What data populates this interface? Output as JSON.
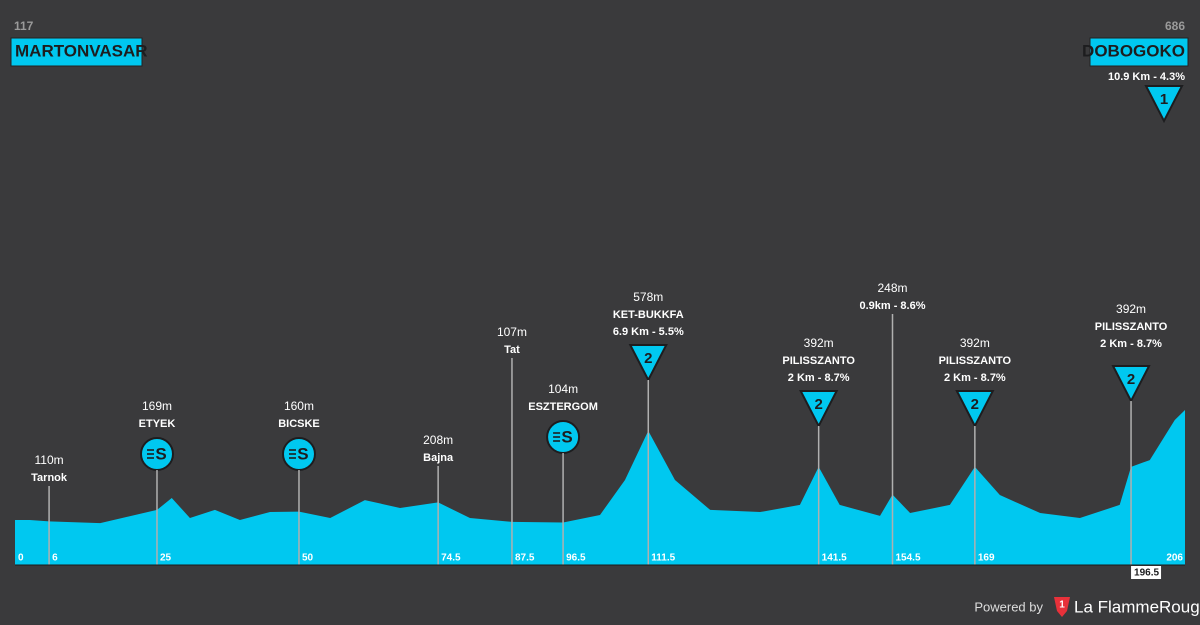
{
  "chart_data": {
    "type": "area",
    "color": "#00c8f0",
    "start": {
      "name": "MARTONVASAR",
      "elevation": 117
    },
    "finish": {
      "name": "DOBOGOKO",
      "elevation": 686,
      "detail": "10.9 Km - 4.3%",
      "category": "1"
    },
    "x": [
      0,
      2.6,
      6,
      15,
      25,
      27.6,
      30.8,
      35.2,
      39.6,
      44.9,
      50,
      55.5,
      61.6,
      67.8,
      74.5,
      80.1,
      87.5,
      96.5,
      103,
      107.4,
      111.5,
      116.2,
      122.4,
      131.2,
      138.2,
      141.5,
      145.2,
      152.3,
      154.5,
      157.6,
      164.6,
      169,
      173.4,
      180.5,
      187.5,
      194.5,
      196.5,
      199.8,
      204.2,
      206
    ],
    "values": [
      117,
      117,
      110,
      101,
      169,
      231,
      127,
      169,
      117,
      158,
      160,
      127,
      220,
      179,
      208,
      127,
      107,
      104,
      143,
      324,
      578,
      324,
      169,
      158,
      195,
      392,
      195,
      138,
      248,
      153,
      195,
      392,
      246,
      153,
      127,
      195,
      392,
      427,
      634,
      686
    ],
    "xticks": [
      0,
      6,
      25,
      50,
      74.5,
      87.5,
      96.5,
      111.5,
      141.5,
      154.5,
      169,
      196.5,
      206
    ],
    "annotations": [
      {
        "x": 6,
        "elevation": 110,
        "elevation_label": "110m",
        "name": "Tarnok"
      },
      {
        "x": 25,
        "elevation": 169,
        "elevation_label": "169m",
        "name": "ETYEK",
        "icon": "S"
      },
      {
        "x": 50,
        "elevation": 160,
        "elevation_label": "160m",
        "name": "BICSKE",
        "icon": "S"
      },
      {
        "x": 74.5,
        "elevation": 208,
        "elevation_label": "208m",
        "name": "Bajna"
      },
      {
        "x": 87.5,
        "elevation": 107,
        "elevation_label": "107m",
        "name": "Tat"
      },
      {
        "x": 96.5,
        "elevation": 104,
        "elevation_label": "104m",
        "name": "ESZTERGOM",
        "icon": "S"
      },
      {
        "x": 111.5,
        "elevation": 578,
        "elevation_label": "578m",
        "name": "KET-BUKKFA",
        "detail": "6.9 Km - 5.5%",
        "category": "2"
      },
      {
        "x": 141.5,
        "elevation": 392,
        "elevation_label": "392m",
        "name": "PILISSZANTO",
        "detail": "2 Km - 8.7%",
        "category": "2"
      },
      {
        "x": 154.5,
        "elevation": 248,
        "elevation_label": "248m",
        "detail": "0.9km - 8.6%"
      },
      {
        "x": 169,
        "elevation": 392,
        "elevation_label": "392m",
        "name": "PILISSZANTO",
        "detail": "2 Km - 8.7%",
        "category": "2"
      },
      {
        "x": 196.5,
        "elevation": 392,
        "elevation_label": "392m",
        "name": "PILISSZANTO",
        "detail": "2 Km - 8.7%",
        "category": "2"
      }
    ],
    "credit": "Powered by",
    "brand_badge": "1",
    "brand": "La FlammeRouge"
  }
}
